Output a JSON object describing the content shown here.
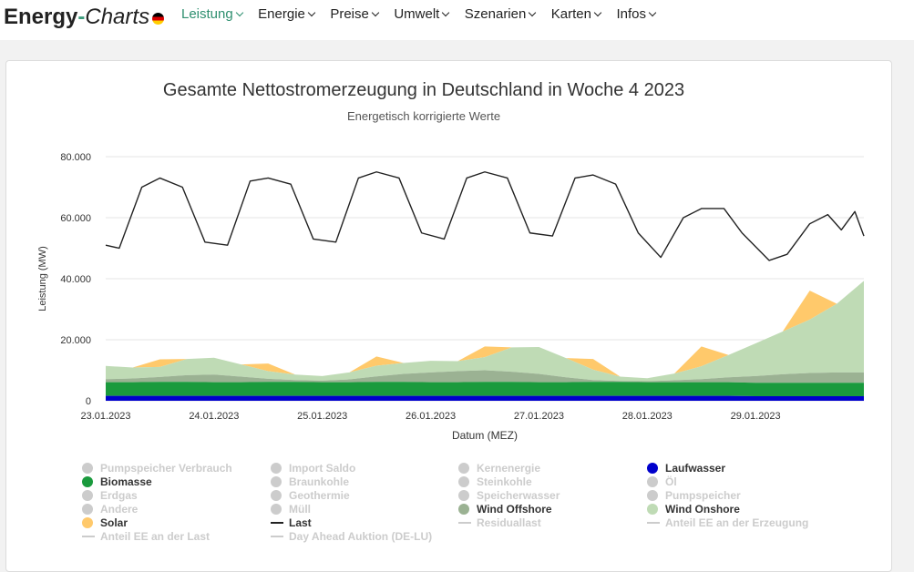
{
  "brand": {
    "part1": "Energy",
    "part2": "-",
    "part3": "Charts"
  },
  "nav": [
    "Leistung",
    "Energie",
    "Preise",
    "Umwelt",
    "Szenarien",
    "Karten",
    "Infos"
  ],
  "colors": {
    "accent": "#2e8f6f",
    "laufwasser": "#0000cc",
    "biomasse": "#1a9a3d",
    "wind_offshore": "#9bb293",
    "wind_onshore": "#bfdbb5",
    "solar": "#ffc96b",
    "last": "#222222",
    "disabled": "#cccccc"
  },
  "chart_data": {
    "type": "area",
    "title": "Gesamte Nettostromerzeugung in Deutschland in Woche 4 2023",
    "subtitle": "Energetisch korrigierte Werte",
    "xlabel": "Datum (MEZ)",
    "ylabel": "Leistung (MW)",
    "x_tick_labels": [
      "23.01.2023",
      "24.01.2023",
      "25.01.2023",
      "26.01.2023",
      "27.01.2023",
      "28.01.2023",
      "29.01.2023"
    ],
    "y_tick_labels": [
      "0",
      "20.000",
      "40.000",
      "60.000",
      "80.000"
    ],
    "ylim": [
      0,
      80000
    ],
    "x_hours": [
      0,
      6,
      12,
      18,
      24,
      30,
      36,
      42,
      48,
      54,
      60,
      66,
      72,
      78,
      84,
      90,
      96,
      102,
      108,
      114,
      120,
      126,
      132,
      138,
      144,
      150,
      156,
      162,
      168
    ],
    "stacked_series": [
      {
        "name": "Laufwasser",
        "values": [
          1600,
          1600,
          1600,
          1600,
          1600,
          1600,
          1600,
          1600,
          1600,
          1600,
          1600,
          1600,
          1600,
          1600,
          1600,
          1600,
          1600,
          1600,
          1600,
          1600,
          1600,
          1600,
          1600,
          1600,
          1500,
          1500,
          1500,
          1500,
          1500
        ]
      },
      {
        "name": "Biomasse",
        "values": [
          4500,
          4500,
          4600,
          4600,
          4500,
          4500,
          4600,
          4600,
          4500,
          4500,
          4600,
          4600,
          4500,
          4500,
          4600,
          4600,
          4500,
          4500,
          4600,
          4600,
          4500,
          4500,
          4500,
          4500,
          4400,
          4400,
          4400,
          4400,
          4400
        ]
      },
      {
        "name": "Wind Offshore",
        "values": [
          1000,
          1200,
          1600,
          2200,
          2500,
          1800,
          1000,
          600,
          500,
          900,
          1800,
          2600,
          3200,
          3600,
          3800,
          3300,
          2700,
          1600,
          600,
          300,
          300,
          600,
          1000,
          1600,
          2200,
          2800,
          3200,
          3400,
          3400
        ]
      },
      {
        "name": "Wind Onshore",
        "values": [
          4300,
          3600,
          3300,
          5300,
          5500,
          4000,
          2500,
          1800,
          1500,
          2300,
          3500,
          3600,
          3800,
          3300,
          4300,
          8000,
          8800,
          6300,
          3400,
          1400,
          1000,
          2200,
          4200,
          7300,
          10700,
          14000,
          17500,
          22500,
          30000
        ]
      },
      {
        "name": "Solar",
        "values": [
          0,
          0,
          2500,
          0,
          0,
          0,
          2500,
          0,
          0,
          0,
          3000,
          0,
          0,
          0,
          3500,
          0,
          0,
          0,
          3500,
          0,
          0,
          0,
          6500,
          0,
          0,
          0,
          9500,
          0,
          0
        ]
      }
    ],
    "line_series": {
      "name": "Last",
      "values": [
        51000,
        50000,
        70000,
        73000,
        70000,
        52000,
        51000,
        72000,
        73000,
        71000,
        53000,
        52000,
        73000,
        75000,
        73000,
        55000,
        53000,
        73000,
        75000,
        73000,
        55000,
        54000,
        73000,
        74000,
        71000,
        55000,
        47000,
        60000,
        63000,
        63000,
        55000,
        46000,
        48000,
        58000,
        61000,
        56000,
        62000,
        54000
      ],
      "x_hours": [
        0,
        3,
        8,
        12,
        17,
        22,
        27,
        32,
        36,
        41,
        46,
        51,
        56,
        60,
        65,
        70,
        75,
        80,
        84,
        89,
        94,
        99,
        104,
        108,
        113,
        118,
        123,
        128,
        132,
        137,
        141,
        147,
        151,
        156,
        160,
        163,
        166,
        168
      ]
    },
    "legend": [
      {
        "name": "Pumpspeicher Verbrauch",
        "marker": "dot",
        "active": false
      },
      {
        "name": "Import Saldo",
        "marker": "dot",
        "active": false
      },
      {
        "name": "Kernenergie",
        "marker": "dot",
        "active": false
      },
      {
        "name": "Laufwasser",
        "marker": "dot",
        "active": true,
        "color": "#0000cc"
      },
      {
        "name": "Biomasse",
        "marker": "dot",
        "active": true,
        "color": "#1a9a3d"
      },
      {
        "name": "Braunkohle",
        "marker": "dot",
        "active": false
      },
      {
        "name": "Steinkohle",
        "marker": "dot",
        "active": false
      },
      {
        "name": "Öl",
        "marker": "dot",
        "active": false
      },
      {
        "name": "Erdgas",
        "marker": "dot",
        "active": false
      },
      {
        "name": "Geothermie",
        "marker": "dot",
        "active": false
      },
      {
        "name": "Speicherwasser",
        "marker": "dot",
        "active": false
      },
      {
        "name": "Pumpspeicher",
        "marker": "dot",
        "active": false
      },
      {
        "name": "Andere",
        "marker": "dot",
        "active": false
      },
      {
        "name": "Müll",
        "marker": "dot",
        "active": false
      },
      {
        "name": "Wind Offshore",
        "marker": "dot",
        "active": true,
        "color": "#9bb293"
      },
      {
        "name": "Wind Onshore",
        "marker": "dot",
        "active": true,
        "color": "#bfdbb5"
      },
      {
        "name": "Solar",
        "marker": "dot",
        "active": true,
        "color": "#ffc96b"
      },
      {
        "name": "Last",
        "marker": "line",
        "active": true,
        "color": "#222222"
      },
      {
        "name": "Residuallast",
        "marker": "line",
        "active": false
      },
      {
        "name": "Anteil EE an der Erzeugung",
        "marker": "line",
        "active": false
      },
      {
        "name": "Anteil EE an der Last",
        "marker": "line",
        "active": false
      },
      {
        "name": "Day Ahead Auktion (DE-LU)",
        "marker": "line",
        "active": false
      }
    ]
  }
}
